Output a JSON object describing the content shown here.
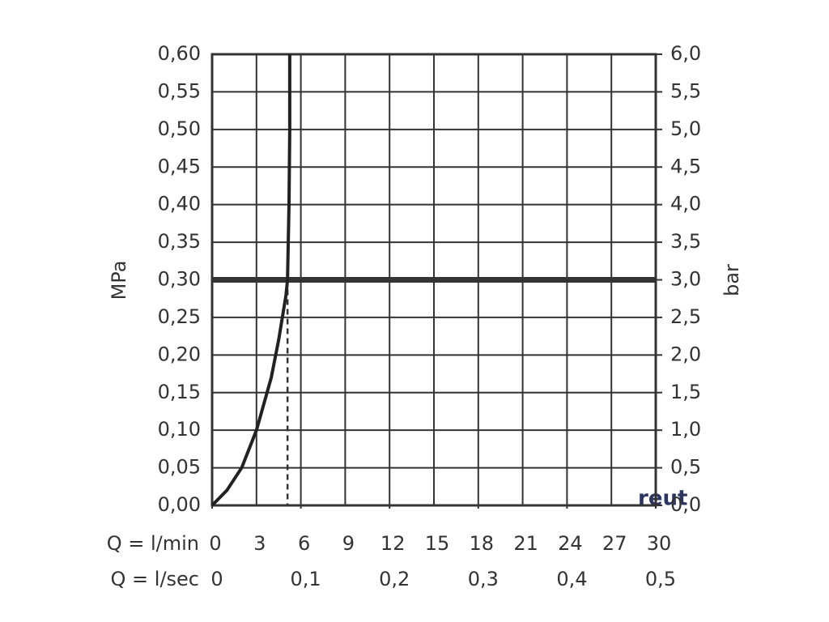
{
  "chart_data": {
    "type": "line",
    "ylabel": "MPa",
    "y2label": "bar",
    "xlabel": "Q = l/min",
    "x2label": "Q = l/sec",
    "x": [
      0,
      1,
      2,
      3,
      4,
      4.5,
      5,
      5.1,
      5.2,
      5.25,
      5.25
    ],
    "series": [
      {
        "color": "#222222",
        "values": [
          0,
          0.02,
          0.05,
          0.1,
          0.17,
          0.22,
          0.28,
          0.3,
          0.4,
          0.5,
          0.6
        ]
      }
    ],
    "xlim": [
      0,
      30
    ],
    "xticks": [
      0,
      3,
      6,
      9,
      12,
      15,
      18,
      21,
      24,
      27,
      30
    ],
    "x2ticks": [
      0,
      {
        "value": 6,
        "label": "0,1"
      },
      {
        "value": 12,
        "label": "0,2"
      },
      {
        "value": 18,
        "label": "0,3"
      },
      {
        "value": 24,
        "label": "0,4"
      },
      {
        "value": 30,
        "label": "0,5"
      }
    ],
    "ylim": [
      0,
      0.6
    ],
    "yticks": [
      {
        "value": 0,
        "label": "0,00"
      },
      {
        "value": 0.05,
        "label": "0,05"
      },
      {
        "value": 0.1,
        "label": "0,10"
      },
      {
        "value": 0.15,
        "label": "0,15"
      },
      {
        "value": 0.2,
        "label": "0,20"
      },
      {
        "value": 0.25,
        "label": "0,25"
      },
      {
        "value": 0.3,
        "label": "0,30"
      },
      {
        "value": 0.35,
        "label": "0,35"
      },
      {
        "value": 0.4,
        "label": "0,40"
      },
      {
        "value": 0.45,
        "label": "0,45"
      },
      {
        "value": 0.5,
        "label": "0,50"
      },
      {
        "value": 0.55,
        "label": "0,55"
      },
      {
        "value": 0.6,
        "label": "0,60"
      }
    ],
    "y2lim": [
      0,
      6
    ],
    "y2ticks": [
      {
        "value": 0,
        "label": "0,0"
      },
      {
        "value": 0.5,
        "label": "0,5"
      },
      {
        "value": 1,
        "label": "1,0"
      },
      {
        "value": 1.5,
        "label": "1,5"
      },
      {
        "value": 2,
        "label": "2,0"
      },
      {
        "value": 2.5,
        "label": "2,5"
      },
      {
        "value": 3,
        "label": "3,0"
      },
      {
        "value": 3.5,
        "label": "3,5"
      },
      {
        "value": 4,
        "label": "4,0"
      },
      {
        "value": 4.5,
        "label": "4,5"
      },
      {
        "value": 5,
        "label": "5,0"
      },
      {
        "value": 5.5,
        "label": "5,5"
      },
      {
        "value": 6,
        "label": "6,0"
      }
    ],
    "reference_y": 0.3,
    "reference_x": 5.1,
    "grid": true,
    "watermark": "reut"
  }
}
